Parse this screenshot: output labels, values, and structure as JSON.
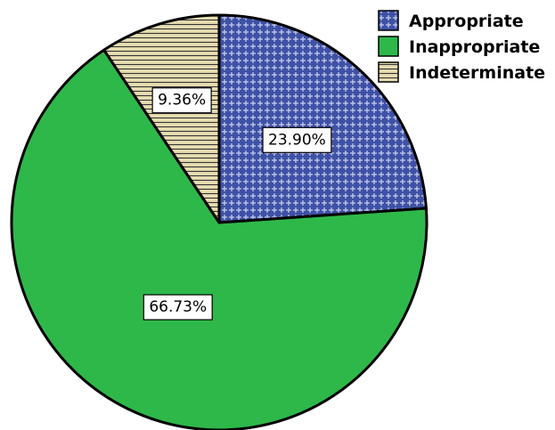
{
  "chart_data": {
    "type": "pie",
    "categories": [
      "Appropriate",
      "Inappropriate",
      "Indeterminate"
    ],
    "values": [
      23.9,
      66.73,
      9.36
    ],
    "data_labels": [
      "23.90%",
      "66.73%",
      "9.36%"
    ],
    "start_angle_deg": 0,
    "direction": "clockwise",
    "legend": {
      "position": "top-right",
      "entries": [
        {
          "label": "Appropriate",
          "color": "#3f51a5",
          "pattern": "crosshatch-dots"
        },
        {
          "label": "Inappropriate",
          "color": "#2eb84a",
          "pattern": "solid"
        },
        {
          "label": "Indeterminate",
          "color": "#e6ddb0",
          "pattern": "horizontal-lines"
        }
      ]
    }
  }
}
